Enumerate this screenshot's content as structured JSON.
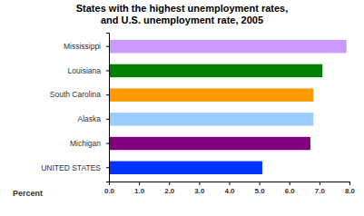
{
  "chart_data": {
    "type": "bar",
    "orientation": "horizontal",
    "title": "States with the highest unemployment rates, and U.S. unemployment rate, 2005",
    "xlabel": "Percent",
    "categories": [
      "Mississippi",
      "Louisiana",
      "South Carolina",
      "Alaska",
      "Michigan",
      "UNITED STATES"
    ],
    "values": [
      7.9,
      7.1,
      6.8,
      6.8,
      6.7,
      5.1
    ],
    "colors": [
      "#cc99ff",
      "#008000",
      "#ff9900",
      "#99ccff",
      "#800080",
      "#0033ff"
    ],
    "xlim": [
      0,
      8
    ],
    "xticks": [
      {
        "value": 0,
        "label": "0.0"
      },
      {
        "value": 1,
        "label": "1.0"
      },
      {
        "value": 2,
        "label": "2.0"
      },
      {
        "value": 3,
        "label": "3.0"
      },
      {
        "value": 4,
        "label": "4.0"
      },
      {
        "value": 5,
        "label": "5.0"
      },
      {
        "value": 6,
        "label": "6.0"
      },
      {
        "value": 7,
        "label": "7.0"
      },
      {
        "value": 8,
        "label": "8.0"
      }
    ],
    "grid": false
  }
}
